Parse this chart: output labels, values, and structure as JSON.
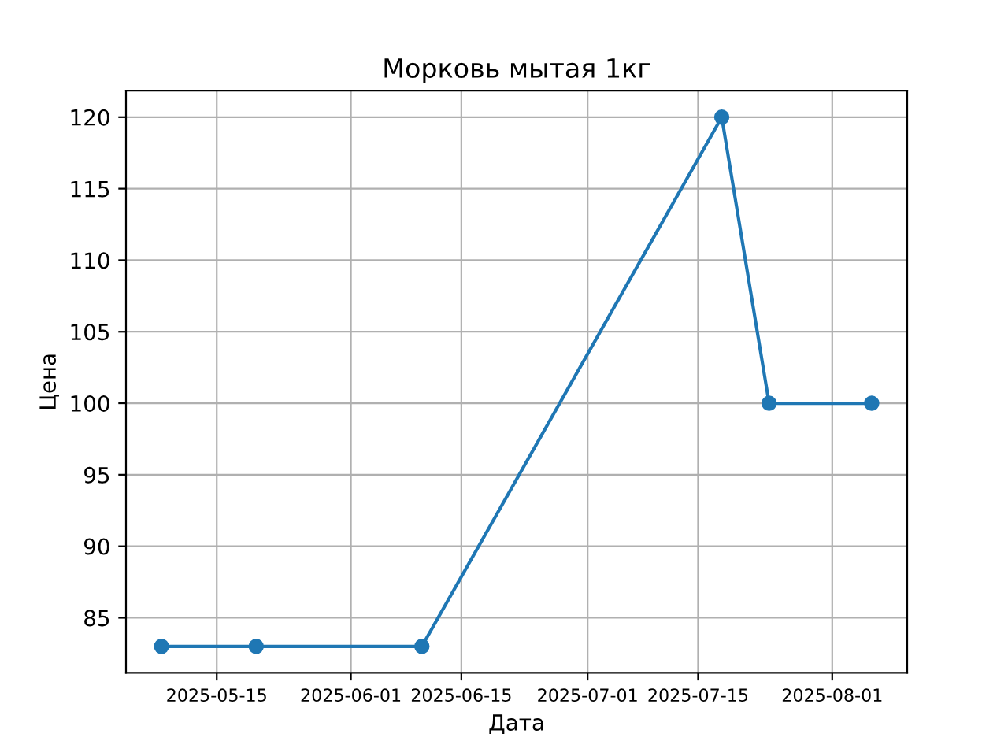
{
  "chart_data": {
    "type": "line",
    "title": "Морковь мытая 1кг",
    "xlabel": "Дата",
    "ylabel": "Цена",
    "x": [
      "2025-05-08",
      "2025-05-20",
      "2025-06-10",
      "2025-07-18",
      "2025-07-24",
      "2025-08-06"
    ],
    "series": [
      {
        "color": "#1f77b4",
        "values": [
          83,
          83,
          83,
          120,
          100,
          100
        ]
      }
    ],
    "xlim": [
      "2025-05-03T12:00",
      "2025-08-10T12:00"
    ],
    "xticks": [
      {
        "value": "2025-05-15",
        "label": "2025-05-15"
      },
      {
        "value": "2025-06-01",
        "label": "2025-06-01"
      },
      {
        "value": "2025-06-15",
        "label": "2025-06-15"
      },
      {
        "value": "2025-07-01",
        "label": "2025-07-01"
      },
      {
        "value": "2025-07-15",
        "label": "2025-07-15"
      },
      {
        "value": "2025-08-01",
        "label": "2025-08-01"
      }
    ],
    "ylim": [
      81.15,
      121.85
    ],
    "yticks": [
      85,
      90,
      95,
      100,
      105,
      110,
      115,
      120
    ],
    "grid": true,
    "marker": "circle",
    "line_style": "solid"
  }
}
